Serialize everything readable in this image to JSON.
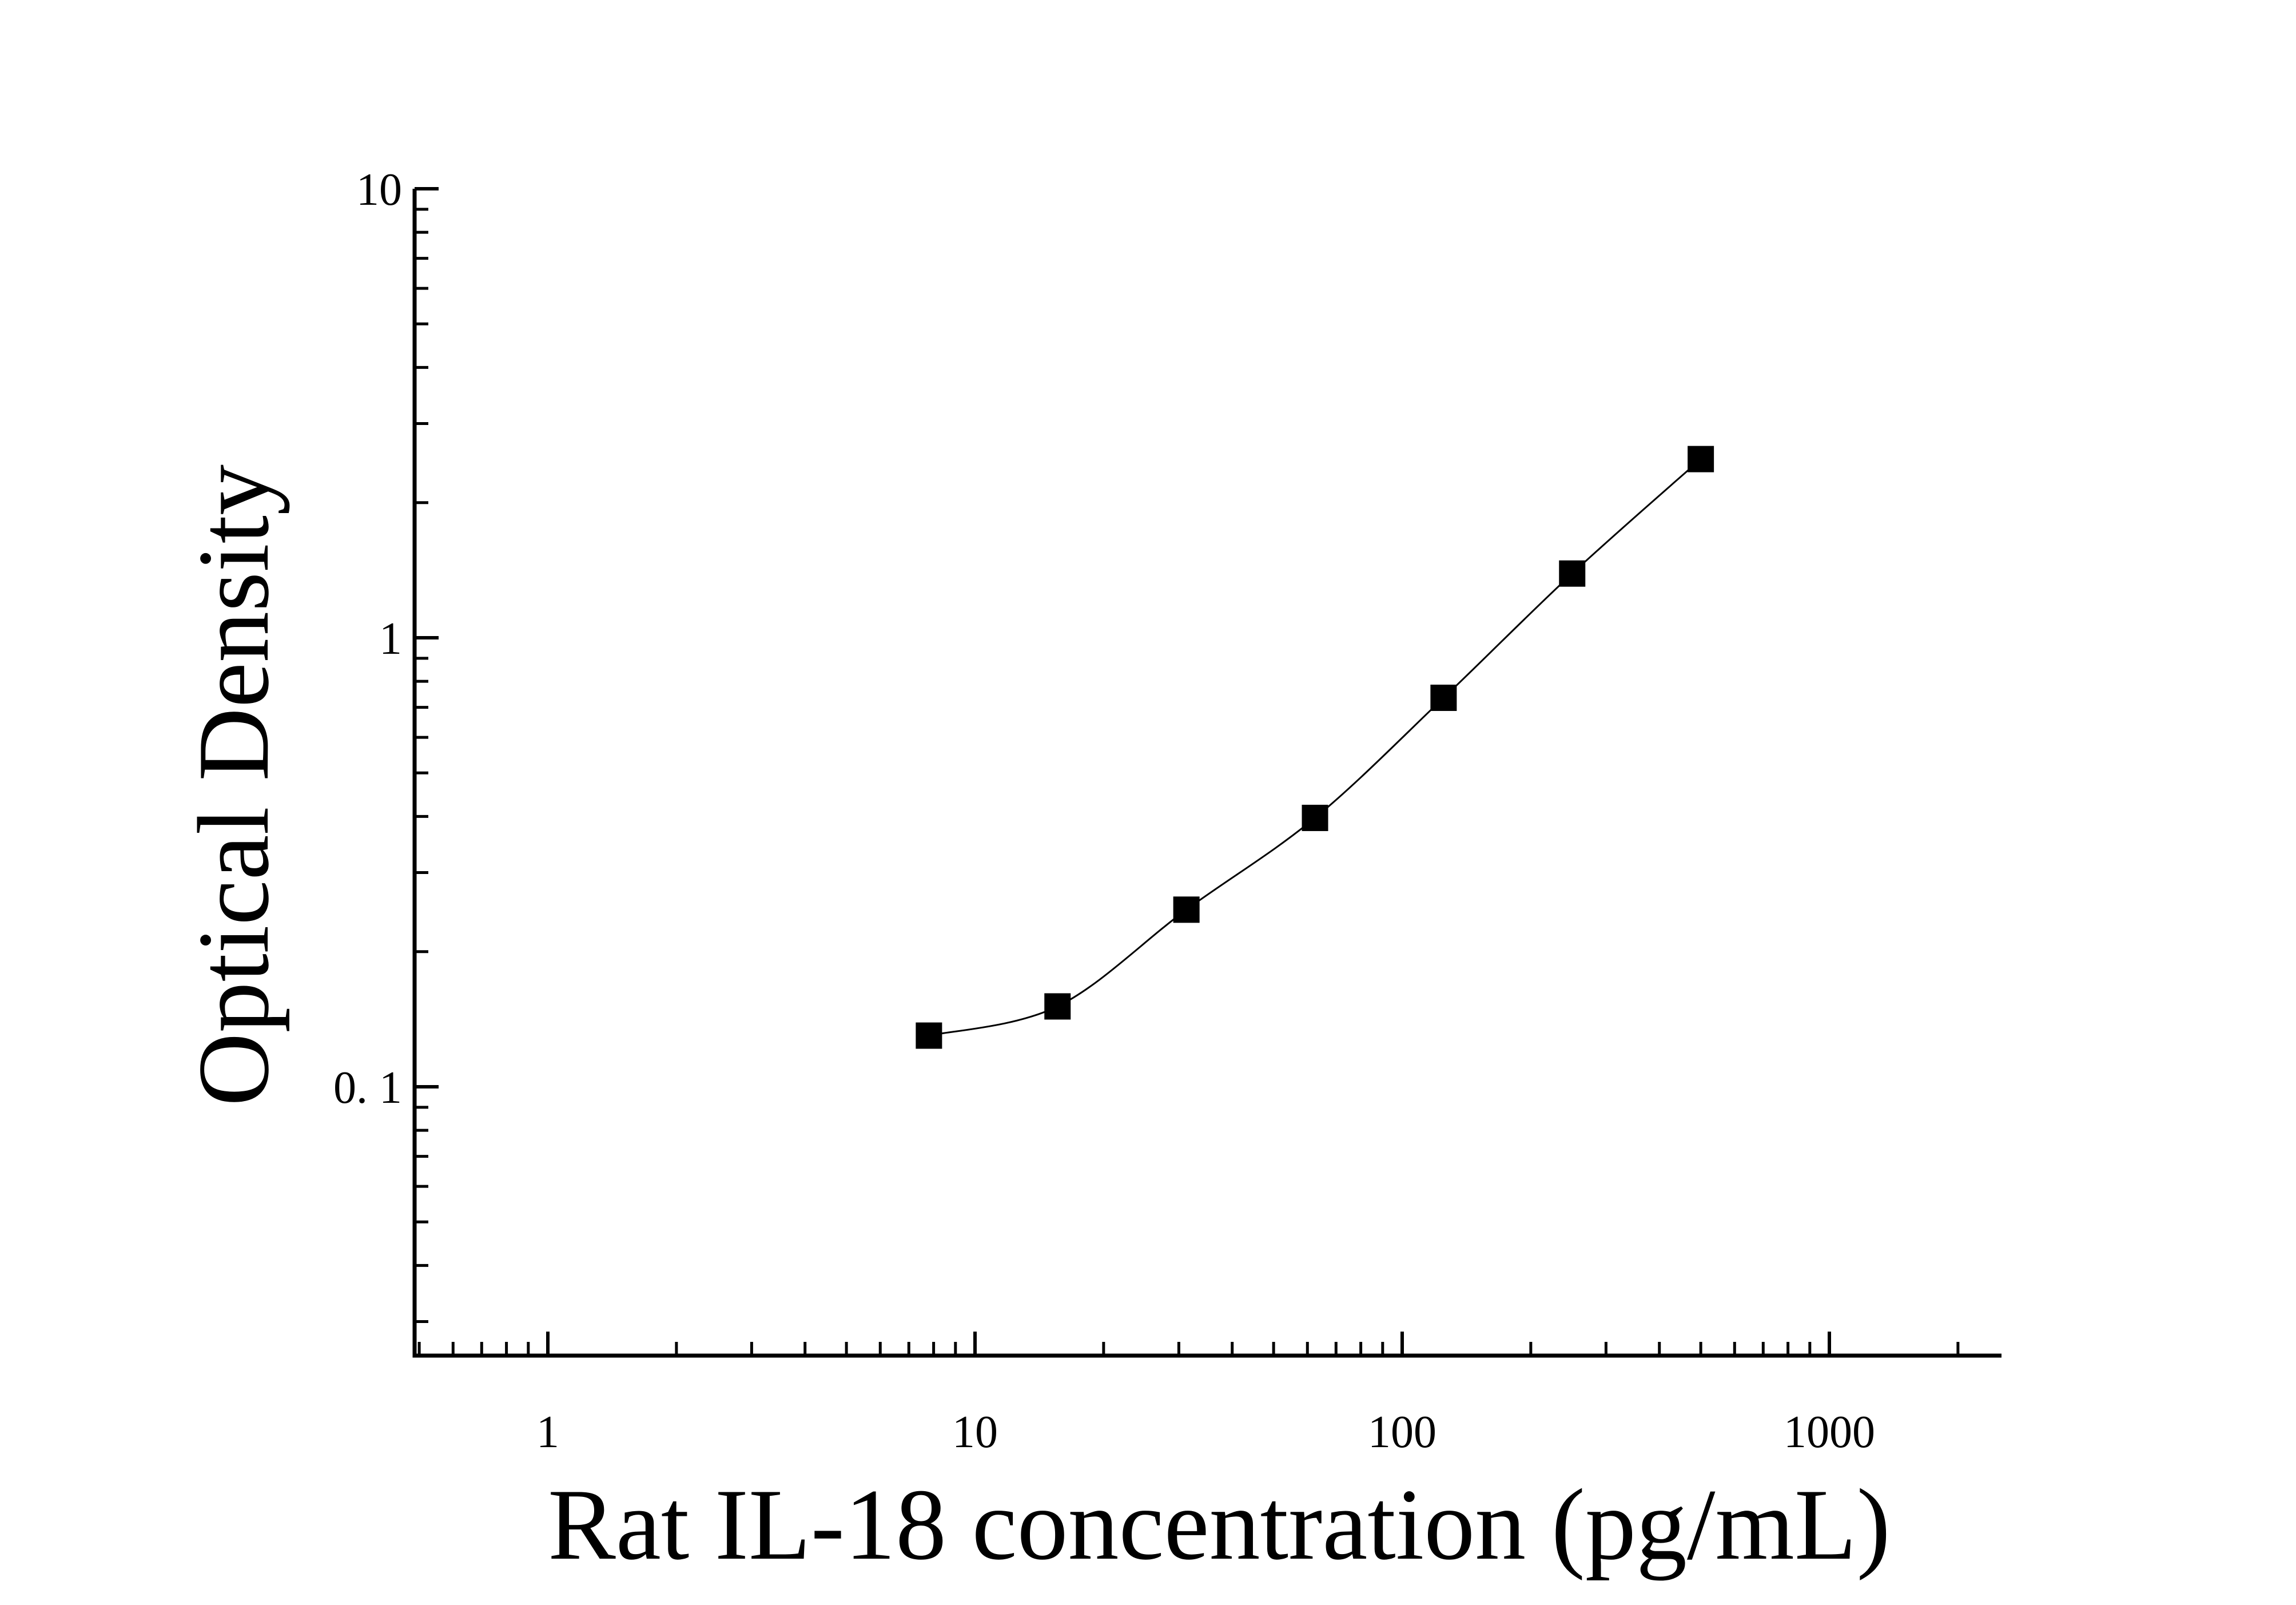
{
  "chart_data": {
    "type": "scatter",
    "xlabel": "Rat IL-18 concentration (pg/mL)",
    "ylabel": "Optical Density",
    "x_scale": "log",
    "y_scale": "log",
    "xlim": [
      0.5,
      2500
    ],
    "ylim": [
      0.025,
      10
    ],
    "x_ticks": [
      1,
      10,
      100,
      1000
    ],
    "x_tick_labels": [
      "1",
      "10",
      "100",
      "1000"
    ],
    "y_ticks": [
      0.1,
      1,
      10
    ],
    "y_tick_labels": [
      "0. 1",
      "1",
      "10"
    ],
    "grid": false,
    "legend": "none",
    "marker": "square",
    "color": "#000000",
    "series": [
      {
        "x": [
          7.8,
          15.6,
          31.25,
          62.5,
          125,
          250,
          500
        ],
        "y": [
          0.13,
          0.151,
          0.248,
          0.397,
          0.735,
          1.39,
          2.5
        ],
        "fit_curve": true
      }
    ]
  }
}
